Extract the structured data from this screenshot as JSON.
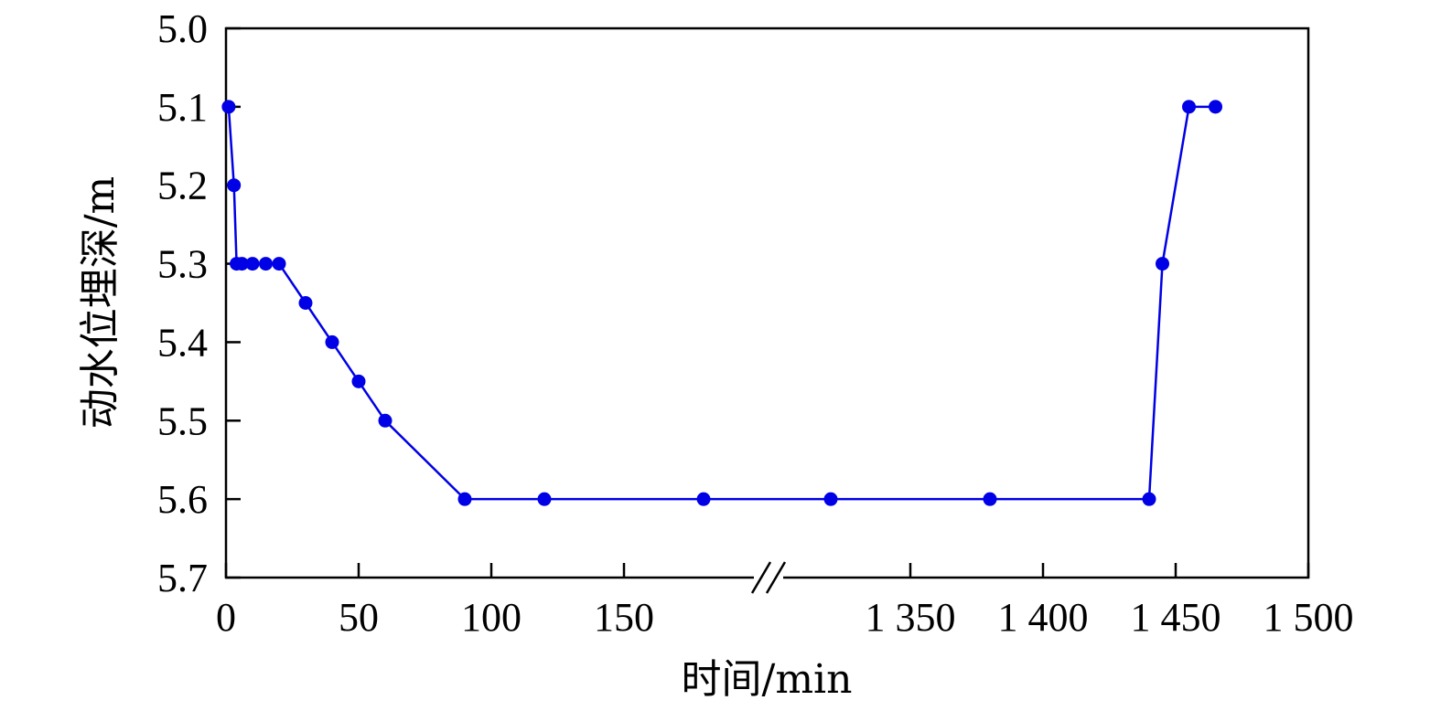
{
  "chart_data": {
    "type": "line",
    "xlabel": "时间/min",
    "ylabel": "动水位埋深/m",
    "y_axis_inverted": true,
    "ylim": [
      5.0,
      5.7
    ],
    "y_ticks": [
      {
        "value": 5.0,
        "label": "5.0"
      },
      {
        "value": 5.1,
        "label": "5.1"
      },
      {
        "value": 5.2,
        "label": "5.2"
      },
      {
        "value": 5.3,
        "label": "5.3"
      },
      {
        "value": 5.4,
        "label": "5.4"
      },
      {
        "value": 5.5,
        "label": "5.5"
      },
      {
        "value": 5.6,
        "label": "5.6"
      },
      {
        "value": 5.7,
        "label": "5.7"
      }
    ],
    "x_axis_broken": true,
    "x_segments": [
      {
        "range": [
          0,
          205
        ]
      },
      {
        "range": [
          1295,
          1500
        ]
      }
    ],
    "x_ticks": [
      {
        "value": 0,
        "label": "0"
      },
      {
        "value": 50,
        "label": "50"
      },
      {
        "value": 100,
        "label": "100"
      },
      {
        "value": 150,
        "label": "150"
      },
      {
        "value": 1350,
        "label": "1 350"
      },
      {
        "value": 1400,
        "label": "1 400"
      },
      {
        "value": 1450,
        "label": "1 450"
      },
      {
        "value": 1500,
        "label": "1 500"
      }
    ],
    "grid": false,
    "series": [
      {
        "color": "#0000e6",
        "points": [
          [
            1,
            5.1
          ],
          [
            3,
            5.2
          ],
          [
            4,
            5.3
          ],
          [
            6,
            5.3
          ],
          [
            10,
            5.3
          ],
          [
            15,
            5.3
          ],
          [
            20,
            5.3
          ],
          [
            30,
            5.35
          ],
          [
            40,
            5.4
          ],
          [
            50,
            5.45
          ],
          [
            60,
            5.5
          ],
          [
            90,
            5.6
          ],
          [
            120,
            5.6
          ],
          [
            180,
            5.6
          ],
          [
            1320,
            5.6
          ],
          [
            1380,
            5.6
          ],
          [
            1440,
            5.6
          ],
          [
            1445,
            5.3
          ],
          [
            1455,
            5.1
          ],
          [
            1465,
            5.1
          ]
        ]
      }
    ]
  }
}
